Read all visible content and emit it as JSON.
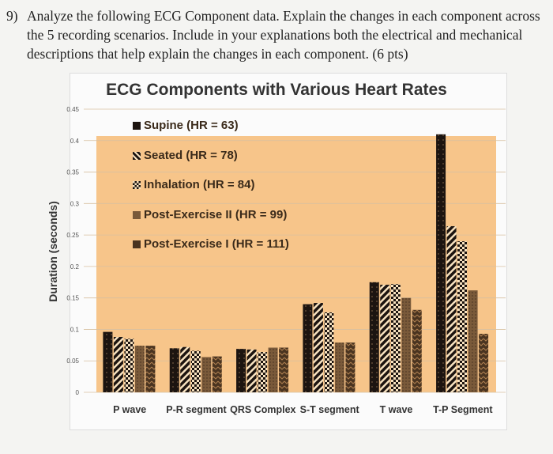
{
  "question": {
    "number": "9)",
    "text": "Analyze the following ECG Component data. Explain the changes in each component across the 5 recording scenarios. Include in your explanations both the electrical and mechanical descriptions that help explain the changes in each component. (6 pts)"
  },
  "chart_data": {
    "type": "bar",
    "title": "ECG Components with Various Heart Rates",
    "xlabel": "",
    "ylabel": "Duration (seconds)",
    "ylim": [
      0,
      0.45
    ],
    "yticks": [
      "0",
      "0.05",
      "0.1",
      "0.15",
      "0.2",
      "0.25",
      "0.3",
      "0.35",
      "0.4",
      "0.45"
    ],
    "grid": true,
    "legend_position": "top-left",
    "categories": [
      "P wave",
      "P-R segment",
      "QRS Complex",
      "S-T segment",
      "T wave",
      "T-P Segment"
    ],
    "series": [
      {
        "name": "Supine (HR = 63)",
        "values": [
          0.096,
          0.07,
          0.069,
          0.14,
          0.175,
          0.41
        ],
        "color": "#1c1410"
      },
      {
        "name": "Seated (HR = 78)",
        "values": [
          0.088,
          0.072,
          0.068,
          0.142,
          0.171,
          0.264
        ],
        "color": "#2a1c12"
      },
      {
        "name": "Inhalation (HR = 84)",
        "values": [
          0.085,
          0.066,
          0.064,
          0.127,
          0.172,
          0.24
        ],
        "color": "#2a1c12"
      },
      {
        "name": "Post-Exercise II (HR = 99)",
        "values": [
          0.074,
          0.056,
          0.071,
          0.079,
          0.15,
          0.162
        ],
        "color": "#7a5a3a"
      },
      {
        "name": "Post-Exercise I (HR = 111)",
        "values": [
          0.074,
          0.057,
          0.071,
          0.079,
          0.131,
          0.093
        ],
        "color": "#4a3420"
      }
    ],
    "plot_background": "#f7c58a"
  }
}
